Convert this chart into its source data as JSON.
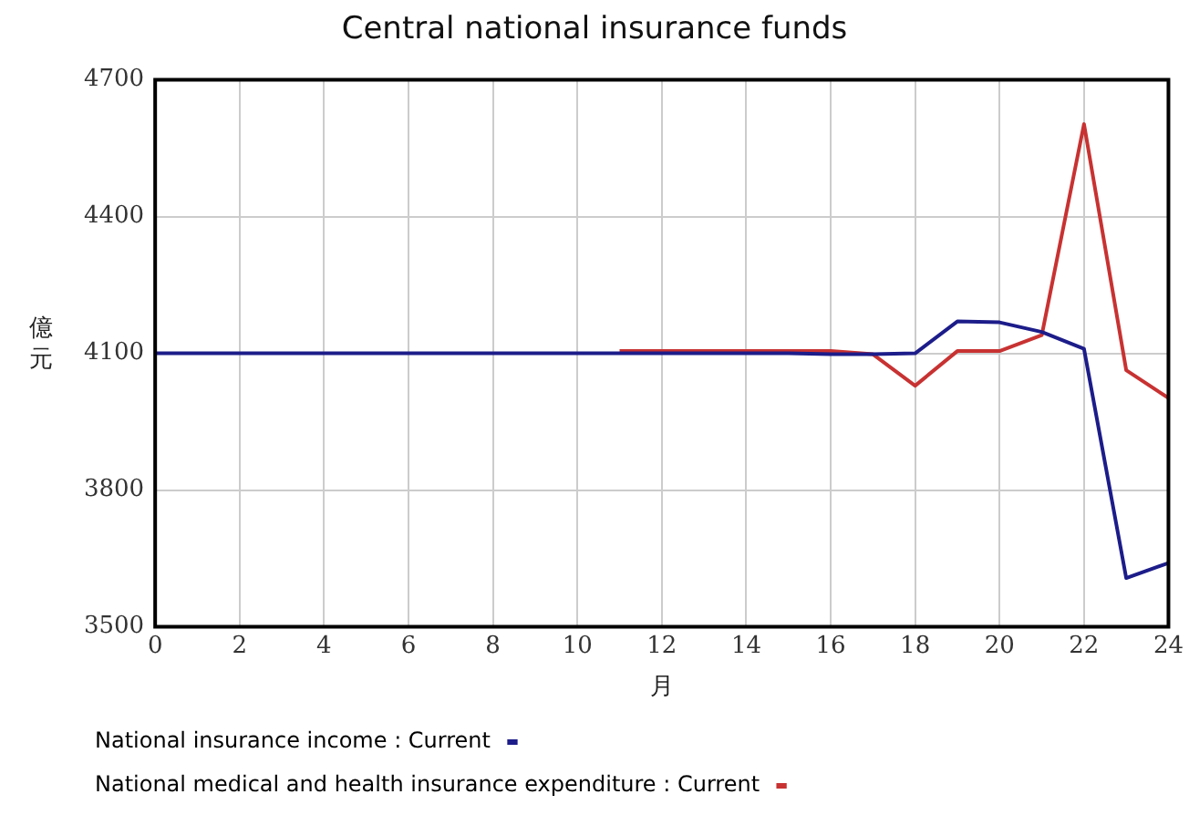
{
  "chart_data": {
    "type": "line",
    "title": "Central national insurance funds",
    "xlabel": "月",
    "ylabel": "億元",
    "x": [
      0,
      1,
      2,
      3,
      4,
      5,
      6,
      7,
      8,
      9,
      10,
      11,
      12,
      13,
      14,
      15,
      16,
      17,
      18,
      19,
      20,
      21,
      22,
      23,
      24
    ],
    "series": [
      {
        "name": "National insurance income : Current",
        "color": "#1c1c8a",
        "values": [
          4100,
          4100,
          4100,
          4100,
          4100,
          4100,
          4100,
          4100,
          4100,
          4100,
          4100,
          4100,
          4100,
          4100,
          4100,
          4100,
          4098,
          4098,
          4100,
          4170,
          4168,
          4147,
          4110,
          3607,
          3640
        ]
      },
      {
        "name": "National medical and health insurance expenditure : Current",
        "color": "#c83232",
        "values": [
          null,
          null,
          null,
          null,
          null,
          null,
          null,
          null,
          null,
          null,
          null,
          4105,
          4105,
          4105,
          4105,
          4105,
          4105,
          4098,
          4029,
          4105,
          4105,
          4140,
          4603,
          4063,
          4002
        ]
      }
    ],
    "xlim": [
      0,
      24
    ],
    "xticks": [
      0,
      2,
      4,
      6,
      8,
      10,
      12,
      14,
      16,
      18,
      20,
      22,
      24
    ],
    "ylim": [
      3500,
      4700
    ],
    "yticks": [
      3500,
      3800,
      4100,
      4400,
      4700
    ],
    "grid": true,
    "legend": "bottom",
    "marker": "none",
    "line_style": "solid"
  }
}
